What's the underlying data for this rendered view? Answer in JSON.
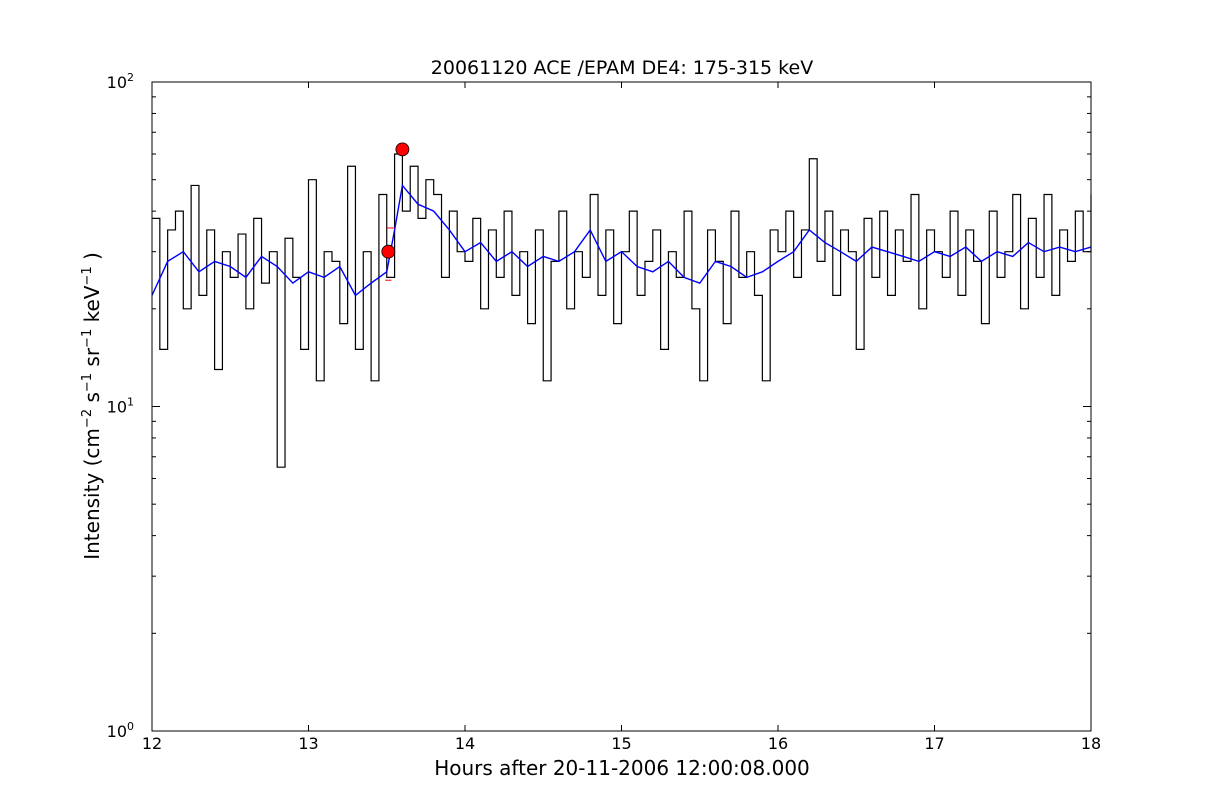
{
  "chart_data": {
    "type": "line",
    "title": "20061120 ACE /EPAM DE4: 175-315 keV",
    "xlabel": "Hours after 20-11-2006 12:00:08.000",
    "ylabel": {
      "prefix": "Intensity (cm",
      "cm_exp": "−2",
      "s": " s",
      "s_exp": "−1",
      "sr": " sr",
      "sr_exp": "−1",
      "kev": " keV",
      "kev_exp": "−1",
      "suffix": " )"
    },
    "xlim": [
      12,
      18
    ],
    "ylim": [
      1,
      100
    ],
    "yscale": "log",
    "grid": false,
    "x_ticks": [
      {
        "value": 12,
        "label": "12"
      },
      {
        "value": 13,
        "label": "13"
      },
      {
        "value": 14,
        "label": "14"
      },
      {
        "value": 15,
        "label": "15"
      },
      {
        "value": 16,
        "label": "16"
      },
      {
        "value": 17,
        "label": "17"
      },
      {
        "value": 18,
        "label": "18"
      }
    ],
    "y_ticks": [
      {
        "value": 1,
        "base": "10",
        "exp": "0"
      },
      {
        "value": 10,
        "base": "10",
        "exp": "1"
      },
      {
        "value": 100,
        "base": "10",
        "exp": "2"
      }
    ],
    "series": [
      {
        "style": "step",
        "color": "#000000",
        "x": [
          12.0,
          12.05,
          12.1,
          12.15,
          12.2,
          12.25,
          12.3,
          12.35,
          12.4,
          12.45,
          12.5,
          12.55,
          12.6,
          12.65,
          12.7,
          12.75,
          12.8,
          12.85,
          12.9,
          12.95,
          13.0,
          13.05,
          13.1,
          13.15,
          13.2,
          13.25,
          13.3,
          13.35,
          13.4,
          13.45,
          13.5,
          13.55,
          13.6,
          13.65,
          13.7,
          13.75,
          13.8,
          13.85,
          13.9,
          13.95,
          14.0,
          14.05,
          14.1,
          14.15,
          14.2,
          14.25,
          14.3,
          14.35,
          14.4,
          14.45,
          14.5,
          14.55,
          14.6,
          14.65,
          14.7,
          14.75,
          14.8,
          14.85,
          14.9,
          14.95,
          15.0,
          15.05,
          15.1,
          15.15,
          15.2,
          15.25,
          15.3,
          15.35,
          15.4,
          15.45,
          15.5,
          15.55,
          15.6,
          15.65,
          15.7,
          15.75,
          15.8,
          15.85,
          15.9,
          15.95,
          16.0,
          16.05,
          16.1,
          16.15,
          16.2,
          16.25,
          16.3,
          16.35,
          16.4,
          16.45,
          16.5,
          16.55,
          16.6,
          16.65,
          16.7,
          16.75,
          16.8,
          16.85,
          16.9,
          16.95,
          17.0,
          17.05,
          17.1,
          17.15,
          17.2,
          17.25,
          17.3,
          17.35,
          17.4,
          17.45,
          17.5,
          17.55,
          17.6,
          17.65,
          17.7,
          17.75,
          17.8,
          17.85,
          17.9,
          17.95,
          18.0
        ],
        "values": [
          38,
          15,
          35,
          40,
          20,
          48,
          22,
          35,
          13,
          30,
          25,
          34,
          20,
          38,
          24,
          30,
          6.5,
          33,
          25,
          15,
          50,
          12,
          30,
          28,
          18,
          55,
          15,
          30,
          12,
          45,
          25,
          60,
          40,
          55,
          38,
          50,
          45,
          25,
          40,
          30,
          28,
          38,
          20,
          35,
          25,
          40,
          22,
          30,
          18,
          35,
          12,
          28,
          40,
          20,
          30,
          25,
          45,
          22,
          35,
          18,
          30,
          40,
          22,
          28,
          35,
          15,
          30,
          25,
          40,
          20,
          12,
          35,
          28,
          18,
          40,
          25,
          30,
          22,
          12,
          35,
          30,
          40,
          25,
          35,
          58,
          28,
          40,
          22,
          35,
          30,
          15,
          38,
          25,
          40,
          22,
          35,
          28,
          45,
          20,
          35,
          30,
          25,
          40,
          22,
          35,
          28,
          18,
          40,
          25,
          30,
          45,
          20,
          38,
          25,
          45,
          22,
          35,
          28,
          40,
          30,
          45
        ],
        "name": ""
      },
      {
        "style": "line",
        "color": "#0000ff",
        "x": [
          12.0,
          12.1,
          12.2,
          12.3,
          12.4,
          12.5,
          12.6,
          12.7,
          12.8,
          12.9,
          13.0,
          13.1,
          13.2,
          13.3,
          13.4,
          13.5,
          13.55,
          13.6,
          13.7,
          13.8,
          13.9,
          14.0,
          14.1,
          14.2,
          14.3,
          14.4,
          14.5,
          14.6,
          14.7,
          14.8,
          14.9,
          15.0,
          15.1,
          15.2,
          15.3,
          15.4,
          15.5,
          15.6,
          15.7,
          15.8,
          15.9,
          16.0,
          16.1,
          16.2,
          16.3,
          16.4,
          16.5,
          16.6,
          16.7,
          16.8,
          16.9,
          17.0,
          17.1,
          17.2,
          17.3,
          17.4,
          17.5,
          17.6,
          17.7,
          17.8,
          17.9,
          18.0
        ],
        "values": [
          22,
          28,
          30,
          26,
          28,
          27,
          25,
          29,
          27,
          24,
          26,
          25,
          27,
          22,
          24,
          26,
          35,
          48,
          42,
          40,
          35,
          30,
          32,
          28,
          30,
          27,
          29,
          28,
          30,
          35,
          28,
          30,
          27,
          26,
          28,
          25,
          24,
          28,
          27,
          25,
          26,
          28,
          30,
          35,
          32,
          30,
          28,
          31,
          30,
          29,
          28,
          30,
          29,
          31,
          28,
          30,
          29,
          32,
          30,
          31,
          30,
          31
        ],
        "name": ""
      }
    ],
    "markers": [
      {
        "x": 13.51,
        "y": 30,
        "color": "#ff0000"
      },
      {
        "x": 13.6,
        "y": 62,
        "color": "#ff0000"
      }
    ],
    "annotation_lines": [
      {
        "x1": 13.49,
        "y1": 24.5,
        "x2": 13.53,
        "y2": 24.5,
        "color": "#ff0000"
      },
      {
        "x1": 13.5,
        "y1": 35.5,
        "x2": 13.55,
        "y2": 35.5,
        "color": "#ff0000"
      }
    ]
  }
}
